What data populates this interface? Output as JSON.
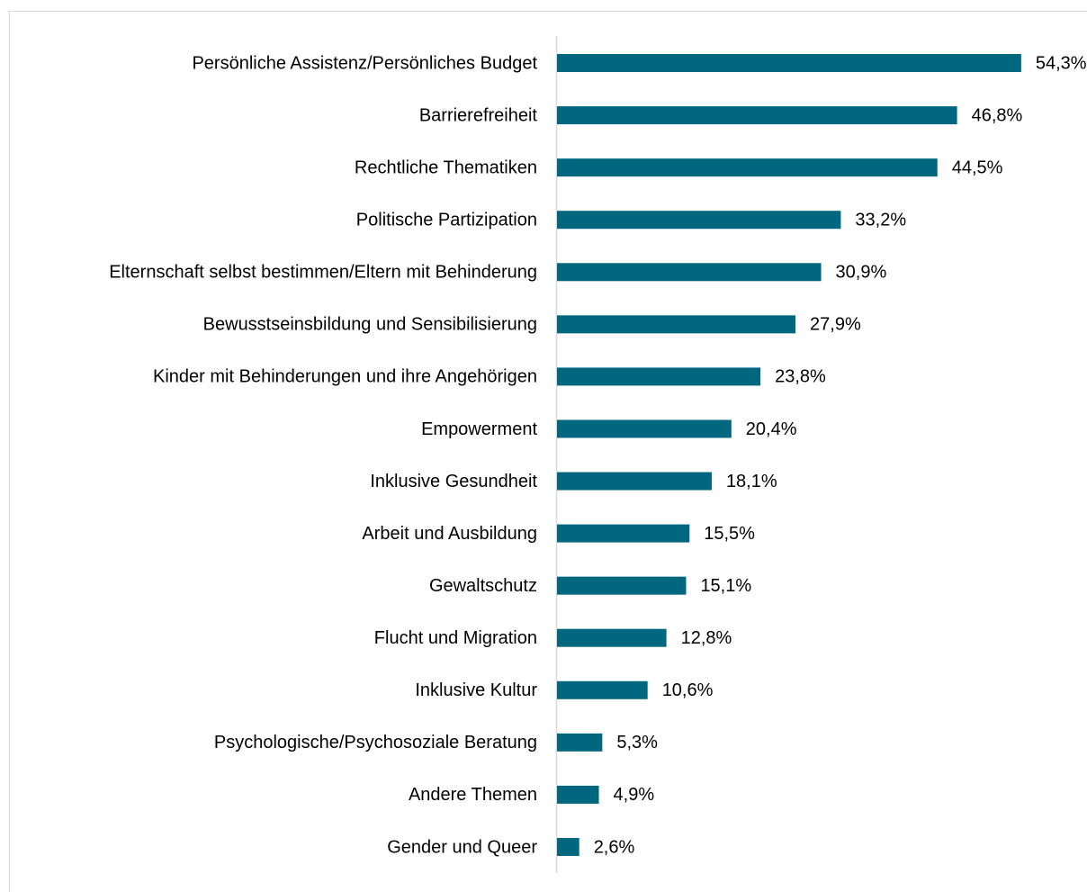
{
  "chart_data": {
    "type": "bar",
    "orientation": "horizontal",
    "categories": [
      "Persönliche Assistenz/Persönliches Budget",
      "Barrierefreiheit",
      "Rechtliche Thematiken",
      "Politische Partizipation",
      "Elternschaft selbst bestimmen/Eltern mit Behinderung",
      "Bewusstseinsbildung und Sensibilisierung",
      "Kinder mit Behinderungen und ihre Angehörigen",
      "Empowerment",
      "Inklusive Gesundheit",
      "Arbeit und Ausbildung",
      "Gewaltschutz",
      "Flucht und Migration",
      "Inklusive Kultur",
      "Psychologische/Psychosoziale Beratung",
      "Andere Themen",
      "Gender und Queer"
    ],
    "values": [
      54.3,
      46.8,
      44.5,
      33.2,
      30.9,
      27.9,
      23.8,
      20.4,
      18.1,
      15.5,
      15.1,
      12.8,
      10.6,
      5.3,
      4.9,
      2.6
    ],
    "value_labels": [
      "54,3%",
      "46,8%",
      "44,5%",
      "33,2%",
      "30,9%",
      "27,9%",
      "23,8%",
      "20,4%",
      "18,1%",
      "15,5%",
      "15,1%",
      "12,8%",
      "10,6%",
      "5,3%",
      "4,9%",
      "2,6%"
    ],
    "color": "#00677f",
    "xlim": [
      0,
      60
    ]
  }
}
